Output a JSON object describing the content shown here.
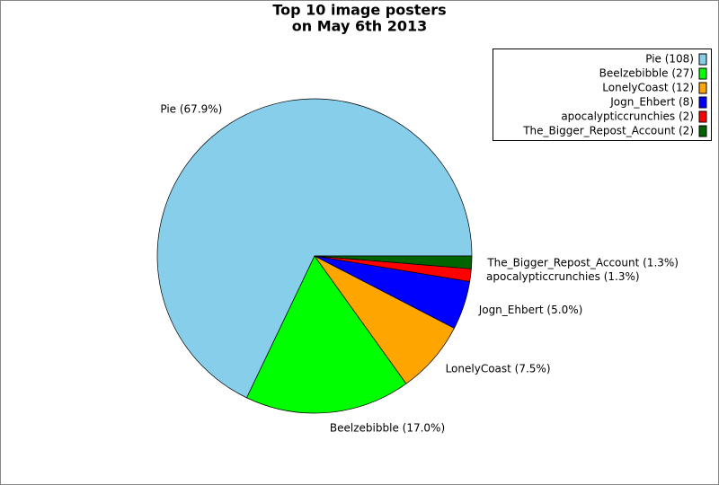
{
  "chart_data": {
    "type": "pie",
    "title": [
      "Top 10 image posters",
      "on May 6th 2013"
    ],
    "categories": [
      "Pie (108)",
      "Beelzebibble (27)",
      "LonelyCoast (12)",
      "Jogn_Ehbert (8)",
      "apocalypticcrunchies (2)",
      "The_Bigger_Repost_Account (2)"
    ],
    "values": [
      67.9,
      17.0,
      7.5,
      5.0,
      1.3,
      1.3
    ],
    "value_labels": [
      "Pie (67.9%)",
      "Beelzebibble (17.0%)",
      "LonelyCoast (7.5%)",
      "Jogn_Ehbert (5.0%)",
      "apocalypticcrunchies (1.3%)",
      "The_Bigger_Repost_Account (1.3%)"
    ],
    "colors": [
      "#87ceeb",
      "#00ff00",
      "#ffa500",
      "#0000ff",
      "#ff0000",
      "#006400"
    ],
    "legend": "upper right"
  }
}
